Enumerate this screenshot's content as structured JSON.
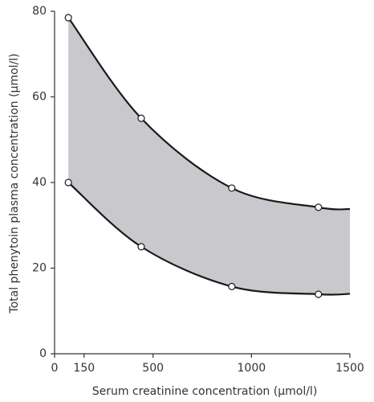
{
  "chart_data": {
    "type": "band",
    "x_label": "Serum creatinine concentration (μmol/l)",
    "y_label": "Total phenytoin plasma concentration (μmol/l)",
    "xlim": [
      0,
      1500
    ],
    "xticks": [
      0,
      150,
      500,
      1000,
      1500
    ],
    "ylim": [
      0,
      80
    ],
    "yticks": [
      0,
      20,
      40,
      60,
      80
    ],
    "fill_color": "#c9c9cd",
    "line_color": "#1a1a1a",
    "markers": [
      true,
      true,
      true,
      true,
      false
    ],
    "series": [
      {
        "x": [
          70,
          440,
          900,
          1340,
          1500
        ],
        "values": [
          78.5,
          55,
          38.7,
          34.2,
          33.8
        ]
      },
      {
        "x": [
          70,
          440,
          900,
          1340,
          1500
        ],
        "values": [
          40,
          25,
          15.7,
          13.9,
          14
        ]
      }
    ]
  }
}
